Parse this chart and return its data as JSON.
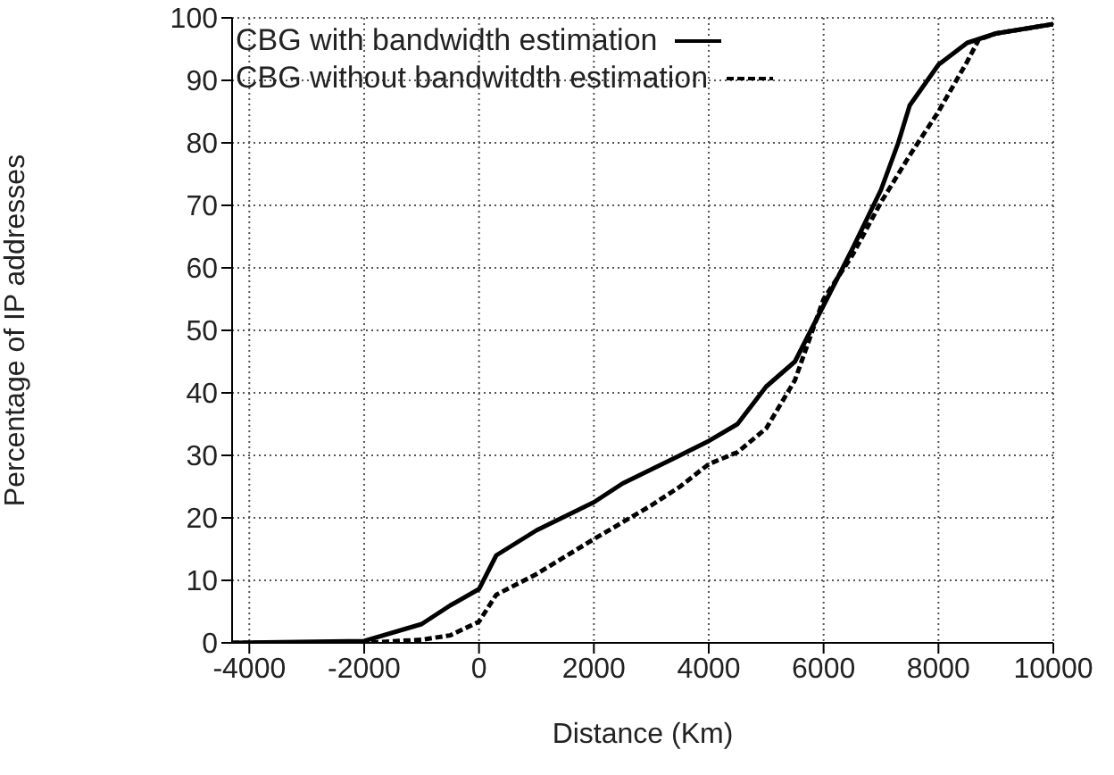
{
  "chart_data": {
    "type": "line",
    "xlabel": "Distance (Km)",
    "ylabel": "Percentage of IP addresses",
    "xlim": [
      -4300,
      10000
    ],
    "xticks": [
      -4000,
      -2000,
      0,
      2000,
      4000,
      6000,
      8000,
      10000
    ],
    "ylim": [
      0,
      100
    ],
    "yticks": [
      0,
      10,
      20,
      30,
      40,
      50,
      60,
      70,
      80,
      90,
      100
    ],
    "grid": true,
    "legend": "top",
    "marker": "none",
    "series": [
      {
        "name": "CBG with bandwidth estimation",
        "color": "#000000",
        "line_style": "solid",
        "x": [
          -4300,
          -2000,
          -1000,
          -500,
          0,
          300,
          1000,
          2000,
          2500,
          3500,
          4000,
          4500,
          5000,
          5500,
          6000,
          6500,
          7000,
          7300,
          7500,
          8000,
          8500,
          9000,
          10000
        ],
        "values": [
          0,
          0.3,
          3,
          6,
          8.6,
          14,
          18,
          22.5,
          25.5,
          30,
          32.3,
          35,
          41,
          45,
          54,
          63,
          72.5,
          80,
          86,
          92.5,
          96,
          97.5,
          99
        ]
      },
      {
        "name": "CBG without bandwitdth estimation",
        "color": "#000000",
        "line_style": "dashed",
        "x": [
          -4300,
          -2000,
          -1000,
          -500,
          0,
          300,
          1000,
          2000,
          3000,
          3500,
          4000,
          4500,
          5000,
          5500,
          6000,
          6500,
          7000,
          7500,
          8000,
          8500,
          8700,
          9000,
          10000
        ],
        "values": [
          0,
          0,
          0.5,
          1.2,
          3.4,
          7.7,
          11,
          16.6,
          22,
          25,
          28.6,
          30.5,
          34.3,
          42,
          55,
          62,
          70.5,
          78,
          85,
          93,
          96.5,
          97.5,
          99
        ]
      }
    ]
  }
}
